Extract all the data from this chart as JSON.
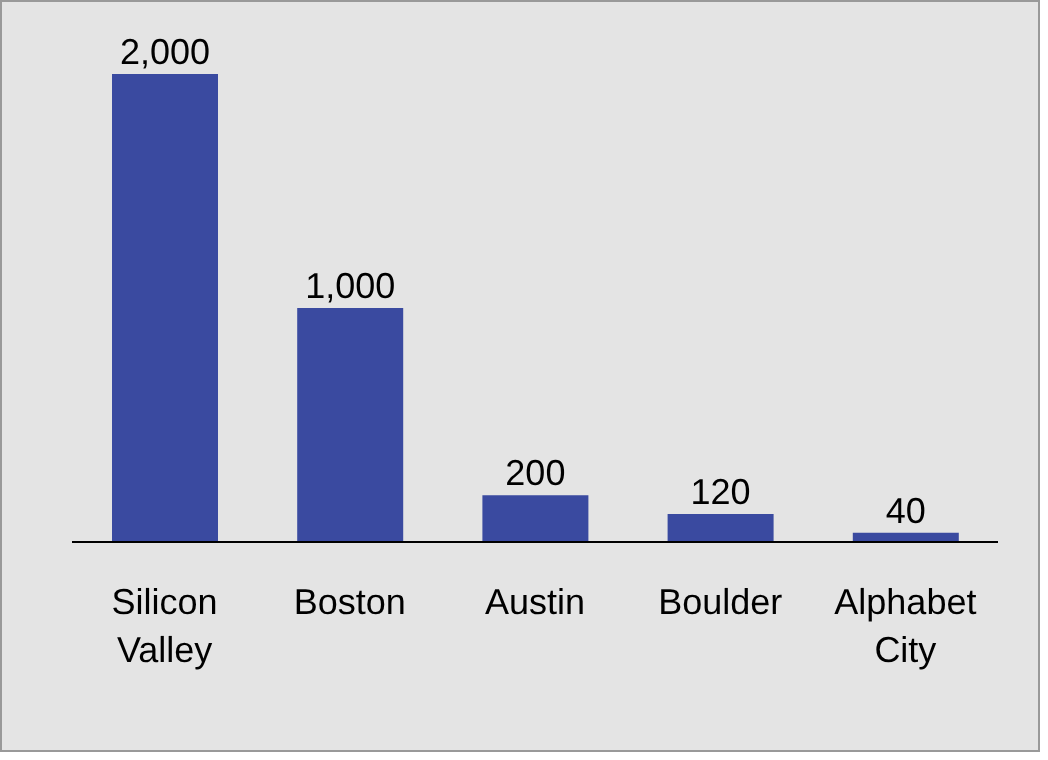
{
  "chart_data": {
    "type": "bar",
    "categories": [
      "Silicon Valley",
      "Boston",
      "Austin",
      "Boulder",
      "Alphabet City"
    ],
    "values": [
      2000,
      1000,
      200,
      120,
      40
    ],
    "value_labels": [
      "2,000",
      "1,000",
      "200",
      "120",
      "40"
    ],
    "color": "#3a4aa0",
    "grid": false,
    "legend": false
  }
}
